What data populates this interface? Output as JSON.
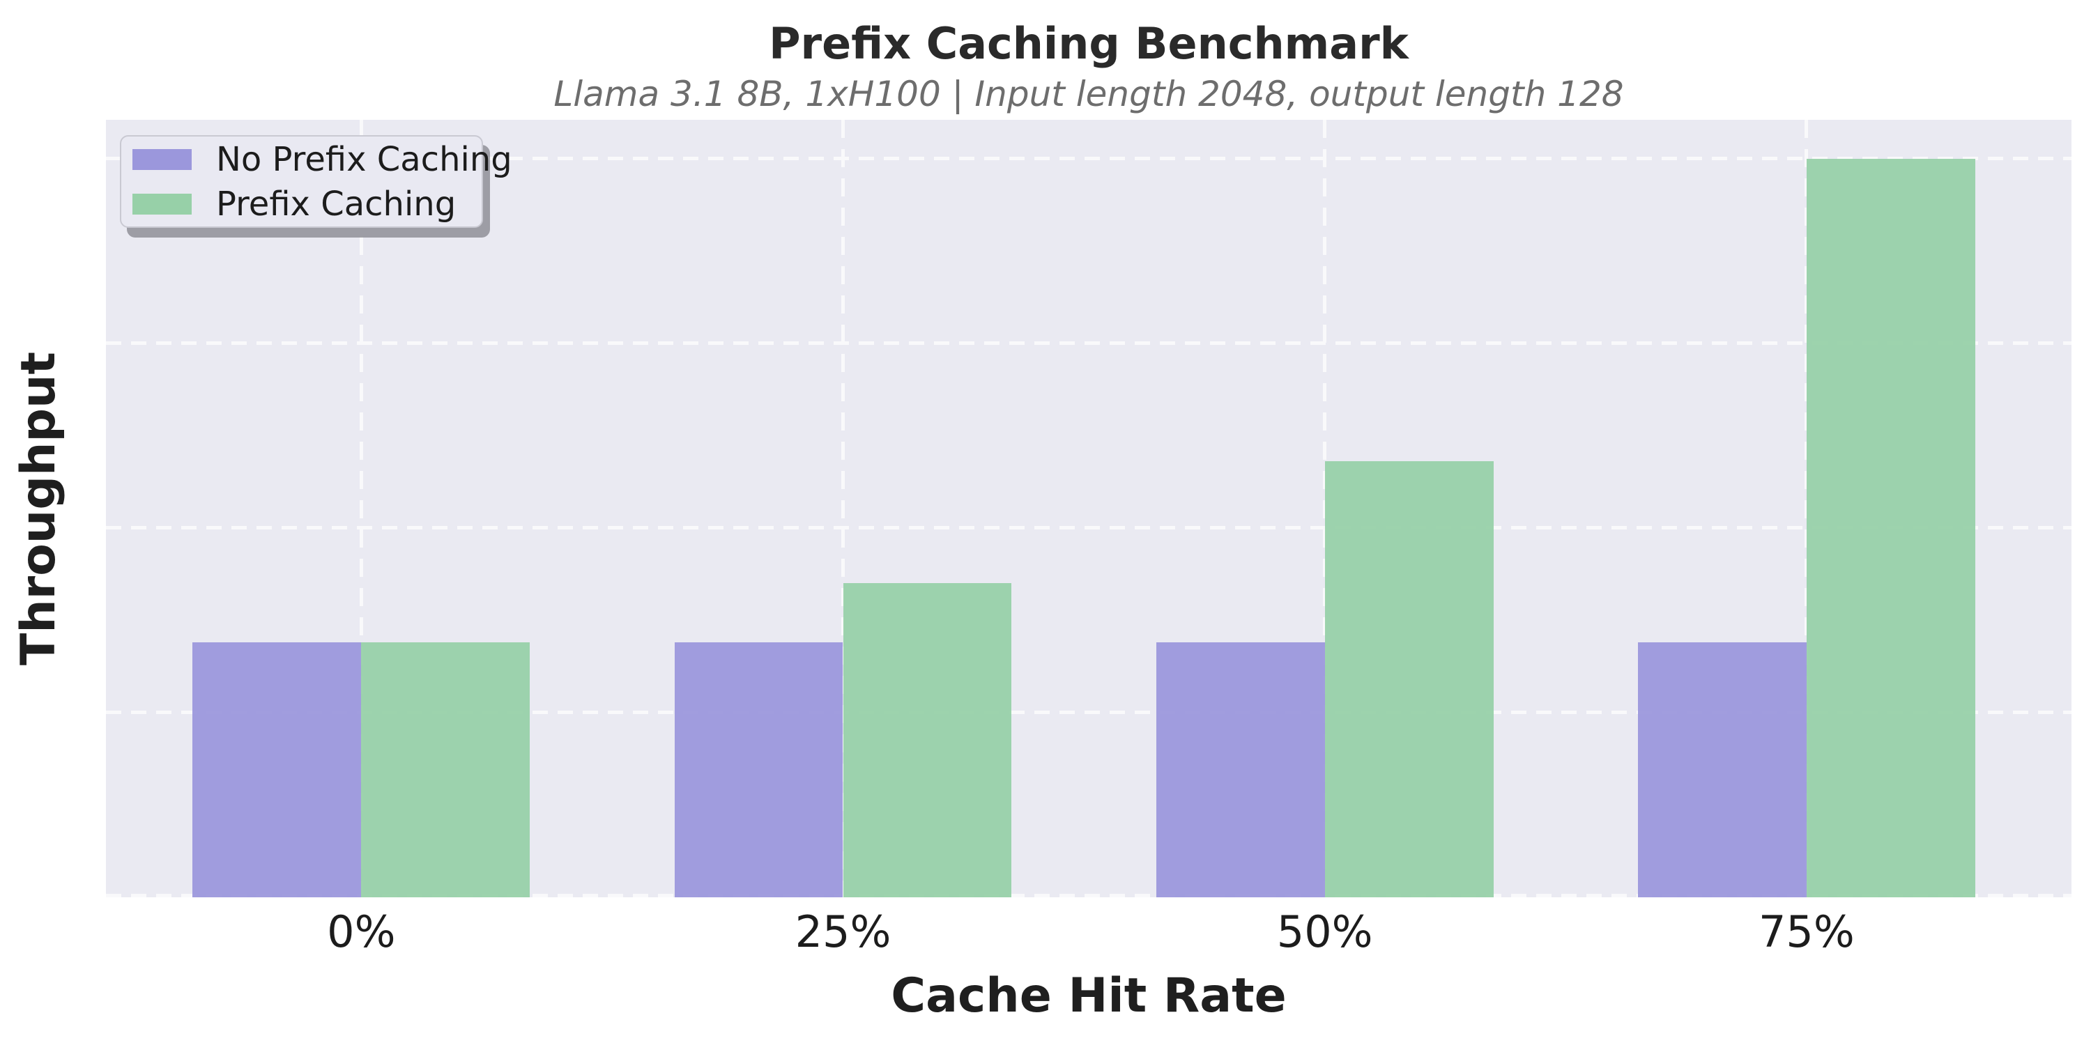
{
  "chart_data": {
    "type": "bar",
    "title": "Prefix Caching Benchmark",
    "subtitle": "Llama 3.1 8B, 1xH100 | Input length 2048, output length 128",
    "xlabel": "Cache Hit Rate",
    "ylabel": "Throughput",
    "categories": [
      "0%",
      "25%",
      "50%",
      "75%"
    ],
    "series": [
      {
        "name": "No Prefix Caching",
        "color": "#9b97dc",
        "values": [
          1.38,
          1.38,
          1.38,
          1.38
        ]
      },
      {
        "name": "Prefix Caching",
        "color": "#97d0a8",
        "values": [
          1.38,
          1.7,
          2.36,
          4.0
        ]
      }
    ],
    "values_note": "Y axis has no tick labels; values are in arbitrary relative units where one horizontal gridline interval = 1 unit. Prefix Caching vs No Prefix Caching ratio ≈ 1.00, 1.23, 1.71, 2.90 at hit rates 0/25/50/75%.",
    "ylim": [
      0,
      4.21
    ],
    "xlim": [
      -0.53,
      3.55
    ],
    "bar_width": 0.35,
    "grid": {
      "show": true,
      "style": "dashed",
      "color": "#ffffff",
      "horizontal_step": 1,
      "vertical_at_categories": true
    },
    "legend": {
      "position": "upper left",
      "shadow": true
    },
    "plot_background": "#eaeaf2",
    "title_color": "#2a2a2a",
    "subtitle_color": "#6d6d6d",
    "axis_label_color": "#1f1f1f",
    "tick_label_color": "#1c1c1c"
  }
}
